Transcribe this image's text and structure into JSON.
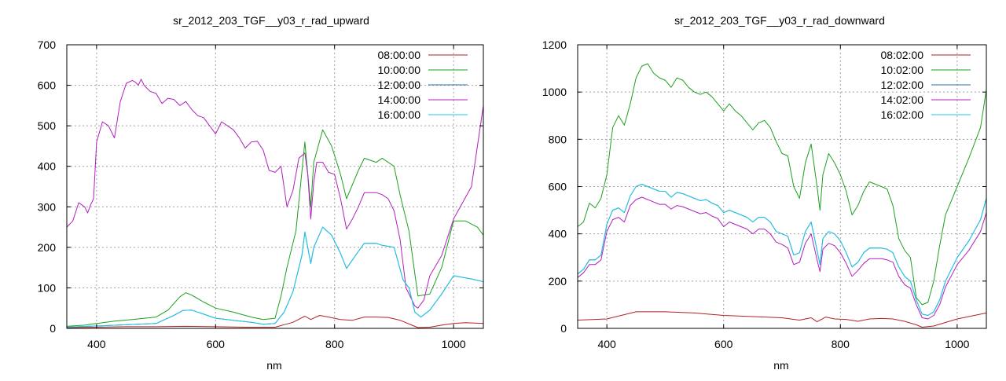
{
  "chart_data": [
    {
      "type": "line",
      "title": "sr_2012_203_TGF__y03_r_rad_upward",
      "xlabel": "nm",
      "ylabel": "",
      "xlim": [
        350,
        1050
      ],
      "ylim": [
        0,
        700
      ],
      "xticks": [
        400,
        600,
        800,
        1000
      ],
      "yticks": [
        0,
        100,
        200,
        300,
        400,
        500,
        600,
        700
      ],
      "grid": true,
      "legend_position": "top-right",
      "series": [
        {
          "name": "08:00:00",
          "color": "#b22222",
          "x": [
            350,
            400,
            450,
            500,
            550,
            600,
            650,
            700,
            730,
            750,
            760,
            775,
            790,
            810,
            830,
            850,
            870,
            890,
            910,
            930,
            940,
            960,
            980,
            1000,
            1020,
            1050
          ],
          "y": [
            2,
            3,
            4,
            4,
            5,
            4,
            3,
            3,
            15,
            30,
            22,
            32,
            28,
            22,
            20,
            28,
            28,
            27,
            20,
            8,
            2,
            3,
            8,
            12,
            14,
            12
          ]
        },
        {
          "name": "10:00:00",
          "color": "#1ea01e",
          "x": [
            350,
            380,
            400,
            430,
            460,
            500,
            520,
            540,
            550,
            560,
            580,
            600,
            630,
            660,
            680,
            700,
            710,
            720,
            735,
            750,
            760,
            765,
            780,
            795,
            810,
            820,
            840,
            850,
            870,
            880,
            900,
            910,
            925,
            940,
            960,
            980,
            1000,
            1020,
            1040,
            1050
          ],
          "y": [
            5,
            8,
            12,
            18,
            22,
            28,
            45,
            78,
            88,
            82,
            65,
            50,
            40,
            28,
            22,
            25,
            80,
            150,
            240,
            460,
            300,
            410,
            490,
            450,
            380,
            320,
            390,
            420,
            410,
            420,
            400,
            330,
            240,
            80,
            85,
            150,
            265,
            265,
            250,
            230
          ]
        },
        {
          "name": "12:00:00",
          "color": "#1f6fb2",
          "x": [
            350,
            400,
            450,
            500,
            530,
            545,
            560,
            580,
            600,
            630,
            660,
            680,
            700,
            715,
            730,
            745,
            750,
            760,
            765,
            780,
            795,
            810,
            820,
            840,
            850,
            870,
            880,
            900,
            915,
            925,
            935,
            945,
            960,
            980,
            1000,
            1030,
            1050
          ],
          "y": [
            3,
            6,
            9,
            12,
            32,
            44,
            45,
            35,
            25,
            20,
            15,
            10,
            12,
            40,
            90,
            180,
            238,
            160,
            200,
            250,
            230,
            185,
            148,
            190,
            210,
            210,
            205,
            200,
            120,
            100,
            40,
            28,
            45,
            85,
            130,
            122,
            115
          ]
        },
        {
          "name": "14:00:00",
          "color": "#b21fc0",
          "x": [
            350,
            360,
            370,
            380,
            385,
            390,
            395,
            400,
            410,
            420,
            430,
            440,
            450,
            460,
            465,
            470,
            475,
            480,
            490,
            500,
            510,
            520,
            530,
            540,
            550,
            560,
            570,
            580,
            590,
            600,
            610,
            620,
            630,
            640,
            650,
            660,
            670,
            680,
            690,
            700,
            710,
            720,
            730,
            740,
            750,
            755,
            760,
            765,
            770,
            780,
            790,
            800,
            810,
            820,
            830,
            840,
            850,
            860,
            870,
            880,
            890,
            900,
            910,
            920,
            930,
            935,
            940,
            950,
            960,
            980,
            1000,
            1030,
            1050
          ],
          "y": [
            250,
            265,
            310,
            300,
            285,
            305,
            320,
            460,
            510,
            500,
            470,
            560,
            605,
            612,
            608,
            600,
            615,
            600,
            585,
            580,
            555,
            568,
            565,
            550,
            560,
            540,
            525,
            520,
            500,
            480,
            510,
            500,
            490,
            470,
            445,
            460,
            462,
            440,
            390,
            385,
            400,
            300,
            340,
            420,
            433,
            380,
            270,
            360,
            410,
            410,
            385,
            380,
            320,
            245,
            270,
            300,
            335,
            335,
            335,
            330,
            320,
            290,
            220,
            100,
            70,
            55,
            50,
            70,
            130,
            180,
            270,
            350,
            550
          ]
        },
        {
          "name": "16:00:00",
          "color": "#1ec8e6",
          "x": [
            350,
            400,
            450,
            500,
            530,
            545,
            560,
            580,
            600,
            630,
            660,
            680,
            700,
            715,
            730,
            745,
            750,
            760,
            765,
            780,
            795,
            810,
            820,
            840,
            850,
            870,
            880,
            900,
            915,
            925,
            935,
            945,
            960,
            980,
            1000,
            1030,
            1050
          ],
          "y": [
            3,
            6,
            9,
            12,
            32,
            44,
            45,
            35,
            25,
            20,
            15,
            10,
            12,
            40,
            90,
            180,
            238,
            160,
            200,
            250,
            230,
            185,
            148,
            190,
            210,
            210,
            205,
            200,
            120,
            100,
            40,
            28,
            45,
            85,
            130,
            122,
            115
          ]
        }
      ]
    },
    {
      "type": "line",
      "title": "sr_2012_203_TGF__y03_r_rad_downward",
      "xlabel": "nm",
      "ylabel": "",
      "xlim": [
        350,
        1050
      ],
      "ylim": [
        0,
        1200
      ],
      "xticks": [
        400,
        600,
        800,
        1000
      ],
      "yticks": [
        0,
        200,
        400,
        600,
        800,
        1000,
        1200
      ],
      "grid": true,
      "legend_position": "top-right",
      "series": [
        {
          "name": "08:02:00",
          "color": "#b22222",
          "x": [
            350,
            400,
            450,
            500,
            550,
            600,
            650,
            700,
            730,
            750,
            760,
            775,
            790,
            810,
            830,
            850,
            870,
            890,
            910,
            930,
            940,
            960,
            980,
            1000,
            1020,
            1050
          ],
          "y": [
            35,
            40,
            70,
            70,
            65,
            55,
            50,
            45,
            35,
            45,
            28,
            48,
            40,
            38,
            30,
            40,
            42,
            40,
            30,
            15,
            5,
            10,
            25,
            40,
            50,
            65
          ]
        },
        {
          "name": "10:02:00",
          "color": "#1ea01e",
          "x": [
            350,
            360,
            370,
            380,
            390,
            400,
            410,
            420,
            430,
            440,
            450,
            460,
            470,
            480,
            490,
            500,
            510,
            520,
            530,
            540,
            550,
            560,
            570,
            580,
            590,
            600,
            610,
            620,
            630,
            640,
            650,
            660,
            670,
            680,
            690,
            700,
            710,
            720,
            730,
            740,
            750,
            760,
            765,
            770,
            780,
            790,
            800,
            810,
            820,
            830,
            840,
            850,
            860,
            870,
            880,
            890,
            900,
            910,
            920,
            930,
            940,
            950,
            960,
            970,
            980,
            1000,
            1020,
            1040,
            1050
          ],
          "y": [
            430,
            450,
            530,
            510,
            550,
            650,
            850,
            900,
            860,
            950,
            1060,
            1110,
            1120,
            1080,
            1060,
            1050,
            1020,
            1060,
            1050,
            1020,
            1000,
            990,
            1000,
            980,
            950,
            920,
            950,
            920,
            900,
            870,
            840,
            870,
            880,
            850,
            790,
            740,
            730,
            600,
            550,
            700,
            780,
            600,
            500,
            650,
            740,
            700,
            650,
            580,
            480,
            520,
            580,
            620,
            610,
            600,
            590,
            520,
            380,
            330,
            300,
            130,
            100,
            110,
            200,
            350,
            480,
            600,
            720,
            850,
            1010
          ]
        },
        {
          "name": "12:02:00",
          "color": "#1f6fb2",
          "x": [
            350,
            360,
            370,
            380,
            390,
            400,
            410,
            420,
            430,
            440,
            450,
            460,
            470,
            480,
            490,
            500,
            510,
            520,
            530,
            540,
            550,
            560,
            570,
            580,
            590,
            600,
            610,
            620,
            630,
            640,
            650,
            660,
            670,
            680,
            690,
            700,
            710,
            720,
            730,
            740,
            750,
            760,
            765,
            770,
            780,
            790,
            800,
            810,
            820,
            830,
            840,
            850,
            860,
            870,
            880,
            890,
            900,
            910,
            920,
            930,
            940,
            950,
            960,
            970,
            980,
            1000,
            1020,
            1040,
            1050
          ],
          "y": [
            230,
            250,
            290,
            290,
            310,
            440,
            500,
            510,
            490,
            560,
            600,
            610,
            600,
            590,
            580,
            580,
            555,
            575,
            570,
            560,
            550,
            540,
            545,
            530,
            520,
            490,
            500,
            490,
            480,
            470,
            450,
            470,
            470,
            450,
            410,
            400,
            390,
            310,
            320,
            410,
            450,
            330,
            270,
            380,
            410,
            400,
            370,
            320,
            260,
            280,
            320,
            340,
            340,
            340,
            335,
            320,
            260,
            220,
            200,
            120,
            60,
            55,
            70,
            120,
            200,
            300,
            370,
            460,
            550
          ]
        },
        {
          "name": "14:02:00",
          "color": "#b21fc0",
          "x": [
            350,
            360,
            370,
            380,
            390,
            400,
            410,
            420,
            430,
            440,
            450,
            460,
            470,
            480,
            490,
            500,
            510,
            520,
            530,
            540,
            550,
            560,
            570,
            580,
            590,
            600,
            610,
            620,
            630,
            640,
            650,
            660,
            670,
            680,
            690,
            700,
            710,
            720,
            730,
            740,
            750,
            760,
            765,
            770,
            780,
            790,
            800,
            810,
            820,
            830,
            840,
            850,
            860,
            870,
            880,
            890,
            900,
            910,
            920,
            930,
            940,
            950,
            960,
            970,
            980,
            1000,
            1020,
            1040,
            1050
          ],
          "y": [
            215,
            235,
            270,
            270,
            290,
            410,
            460,
            470,
            450,
            520,
            545,
            555,
            545,
            535,
            525,
            525,
            505,
            520,
            515,
            505,
            495,
            485,
            490,
            475,
            465,
            430,
            450,
            440,
            430,
            420,
            400,
            420,
            420,
            400,
            365,
            355,
            340,
            270,
            280,
            360,
            400,
            290,
            240,
            335,
            360,
            350,
            320,
            275,
            220,
            245,
            275,
            295,
            295,
            295,
            290,
            280,
            220,
            185,
            170,
            100,
            45,
            40,
            55,
            100,
            175,
            270,
            330,
            410,
            490
          ]
        },
        {
          "name": "16:02:00",
          "color": "#1ec8e6",
          "x": [
            350,
            360,
            370,
            380,
            390,
            400,
            410,
            420,
            430,
            440,
            450,
            460,
            470,
            480,
            490,
            500,
            510,
            520,
            530,
            540,
            550,
            560,
            570,
            580,
            590,
            600,
            610,
            620,
            630,
            640,
            650,
            660,
            670,
            680,
            690,
            700,
            710,
            720,
            730,
            740,
            750,
            760,
            765,
            770,
            780,
            790,
            800,
            810,
            820,
            830,
            840,
            850,
            860,
            870,
            880,
            890,
            900,
            910,
            920,
            930,
            940,
            950,
            960,
            970,
            980,
            1000,
            1020,
            1040,
            1050
          ],
          "y": [
            230,
            250,
            290,
            290,
            310,
            440,
            500,
            510,
            490,
            560,
            600,
            610,
            600,
            590,
            580,
            580,
            555,
            575,
            570,
            560,
            550,
            540,
            545,
            530,
            520,
            490,
            500,
            490,
            480,
            470,
            450,
            470,
            470,
            450,
            410,
            400,
            390,
            310,
            320,
            410,
            450,
            330,
            270,
            380,
            410,
            400,
            370,
            320,
            260,
            280,
            320,
            340,
            340,
            340,
            335,
            320,
            260,
            220,
            200,
            120,
            60,
            55,
            70,
            120,
            200,
            300,
            370,
            460,
            550
          ]
        }
      ]
    }
  ]
}
